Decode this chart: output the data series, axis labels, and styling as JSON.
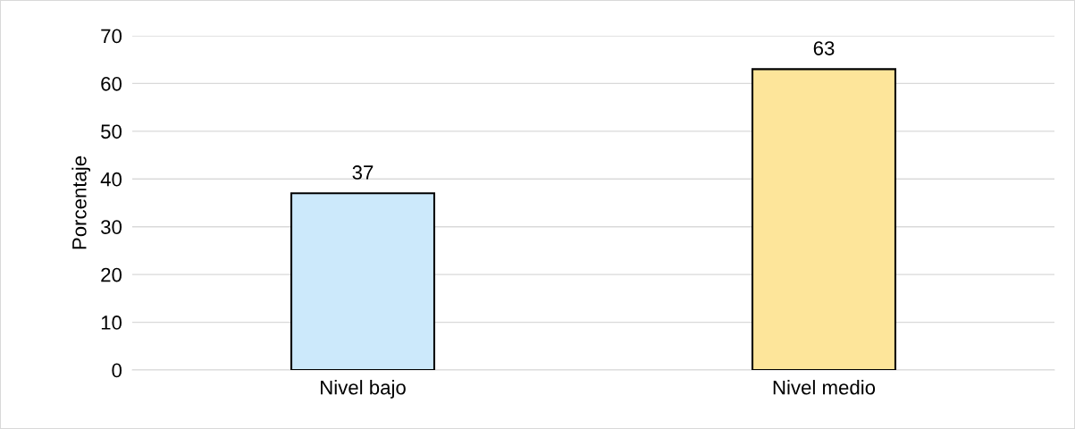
{
  "chart_data": {
    "type": "bar",
    "ylabel": "Porcentaje",
    "categories": [
      "Nivel bajo",
      "Nivel medio"
    ],
    "values": [
      37,
      63
    ],
    "colors": [
      "#cce9fb",
      "#fde59a"
    ],
    "ylim": [
      0,
      70
    ],
    "yticks": [
      0,
      10,
      20,
      30,
      40,
      50,
      60,
      70
    ],
    "grid": "y",
    "data_labels": true
  }
}
